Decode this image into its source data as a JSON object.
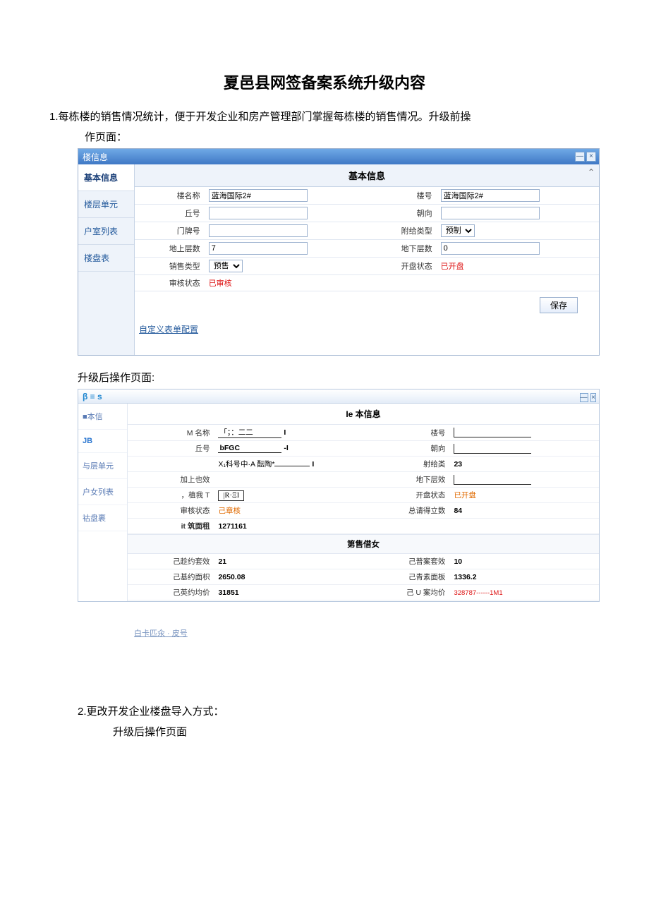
{
  "doc": {
    "title": "夏邑县网签备案系统升级内容",
    "section1_text": "1.每栋楼的销售情况统计，便于开发企业和房产管理部门掌握每栋楼的销售情况。升级前操",
    "section1_sub": "作页面：",
    "after_caption": "升级后操作页面:",
    "section2_num": "2.更改开发企业楼盘导入方式：",
    "section2_sub": "升级后操作页面"
  },
  "win1": {
    "title": "楼信息",
    "sidebar": [
      {
        "label": "基本信息",
        "active": true
      },
      {
        "label": "楼层单元",
        "active": false
      },
      {
        "label": "户室列表",
        "active": false
      },
      {
        "label": "楼盘表",
        "active": false
      }
    ],
    "panel_header": "基本信息",
    "fields": {
      "bldg_name_lbl": "楼名称",
      "bldg_name_val": "蓝海国际2#",
      "bldg_no_lbl": "楼号",
      "bldg_no_val": "蓝海国际2#",
      "qiu_lbl": "丘号",
      "qiu_val": "",
      "orient_lbl": "朝向",
      "orient_val": "",
      "door_lbl": "门牌号",
      "door_val": "",
      "struct_type_lbl": "附给类型",
      "struct_type_val": "预制",
      "floors_up_lbl": "地上层数",
      "floors_up_val": "7",
      "floors_dn_lbl": "地下层数",
      "floors_dn_val": "0",
      "sale_type_lbl": "销售类型",
      "sale_type_val": "预售",
      "open_state_lbl": "开盘状态",
      "open_state_val": "已开盘",
      "audit_lbl": "审核状态",
      "audit_val": "已审核"
    },
    "save_btn": "保存",
    "custom_link": "自定义表单配置"
  },
  "win2": {
    "brand": "β ≡ s",
    "sidebar": [
      {
        "label": "■本信",
        "cls": ""
      },
      {
        "label": "JB",
        "cls": "brand"
      },
      {
        "label": "与层单元",
        "cls": ""
      },
      {
        "label": "户女列表",
        "cls": ""
      },
      {
        "label": "祜盘裹",
        "cls": ""
      }
    ],
    "panel_header": "Ie 本信息",
    "fields": {
      "name_lbl": "M 名称",
      "name_val": "「；：二二",
      "bldg_no_lbl": "楼号",
      "qiu_lbl": "丘号",
      "qiu_val": "bFGC",
      "orient_lbl": "朝向",
      "subj_lbl": "X₁科号中·A 酝陶*",
      "shegei_lbl": "射给类",
      "shegei_val": "23",
      "jia_lbl": "加上也效",
      "dixia_lbl": "地下层效",
      "huwo_lbl": "，植我 T",
      "huwo_val": "|R·ΞI",
      "open_lbl": "开盘状态",
      "open_val": "已开盘",
      "audit_lbl": "审核状态",
      "audit_val": "己章核",
      "zongqing_lbl": "总请得立数",
      "zongqing_val": "84",
      "area_lbl": "it 筑面租",
      "area_val": "1271161"
    },
    "sales_header": "第售借女",
    "sales": {
      "signed_sets_lbl": "己趁约套效",
      "signed_sets_val": "21",
      "filed_sets_lbl": "己普案套效",
      "filed_sets_val": "10",
      "signed_area_lbl": "己基约面枳",
      "signed_area_val": "2650.08",
      "filed_area_lbl": "己青素面板",
      "filed_area_val": "1336.2",
      "signed_avg_lbl": "己英约均价",
      "signed_avg_val": "31851",
      "filed_avg_lbl": "己 U 案均价",
      "filed_avg_val": "328787------1M1"
    },
    "footer_link": "白卡匹氽 · 皮号"
  }
}
